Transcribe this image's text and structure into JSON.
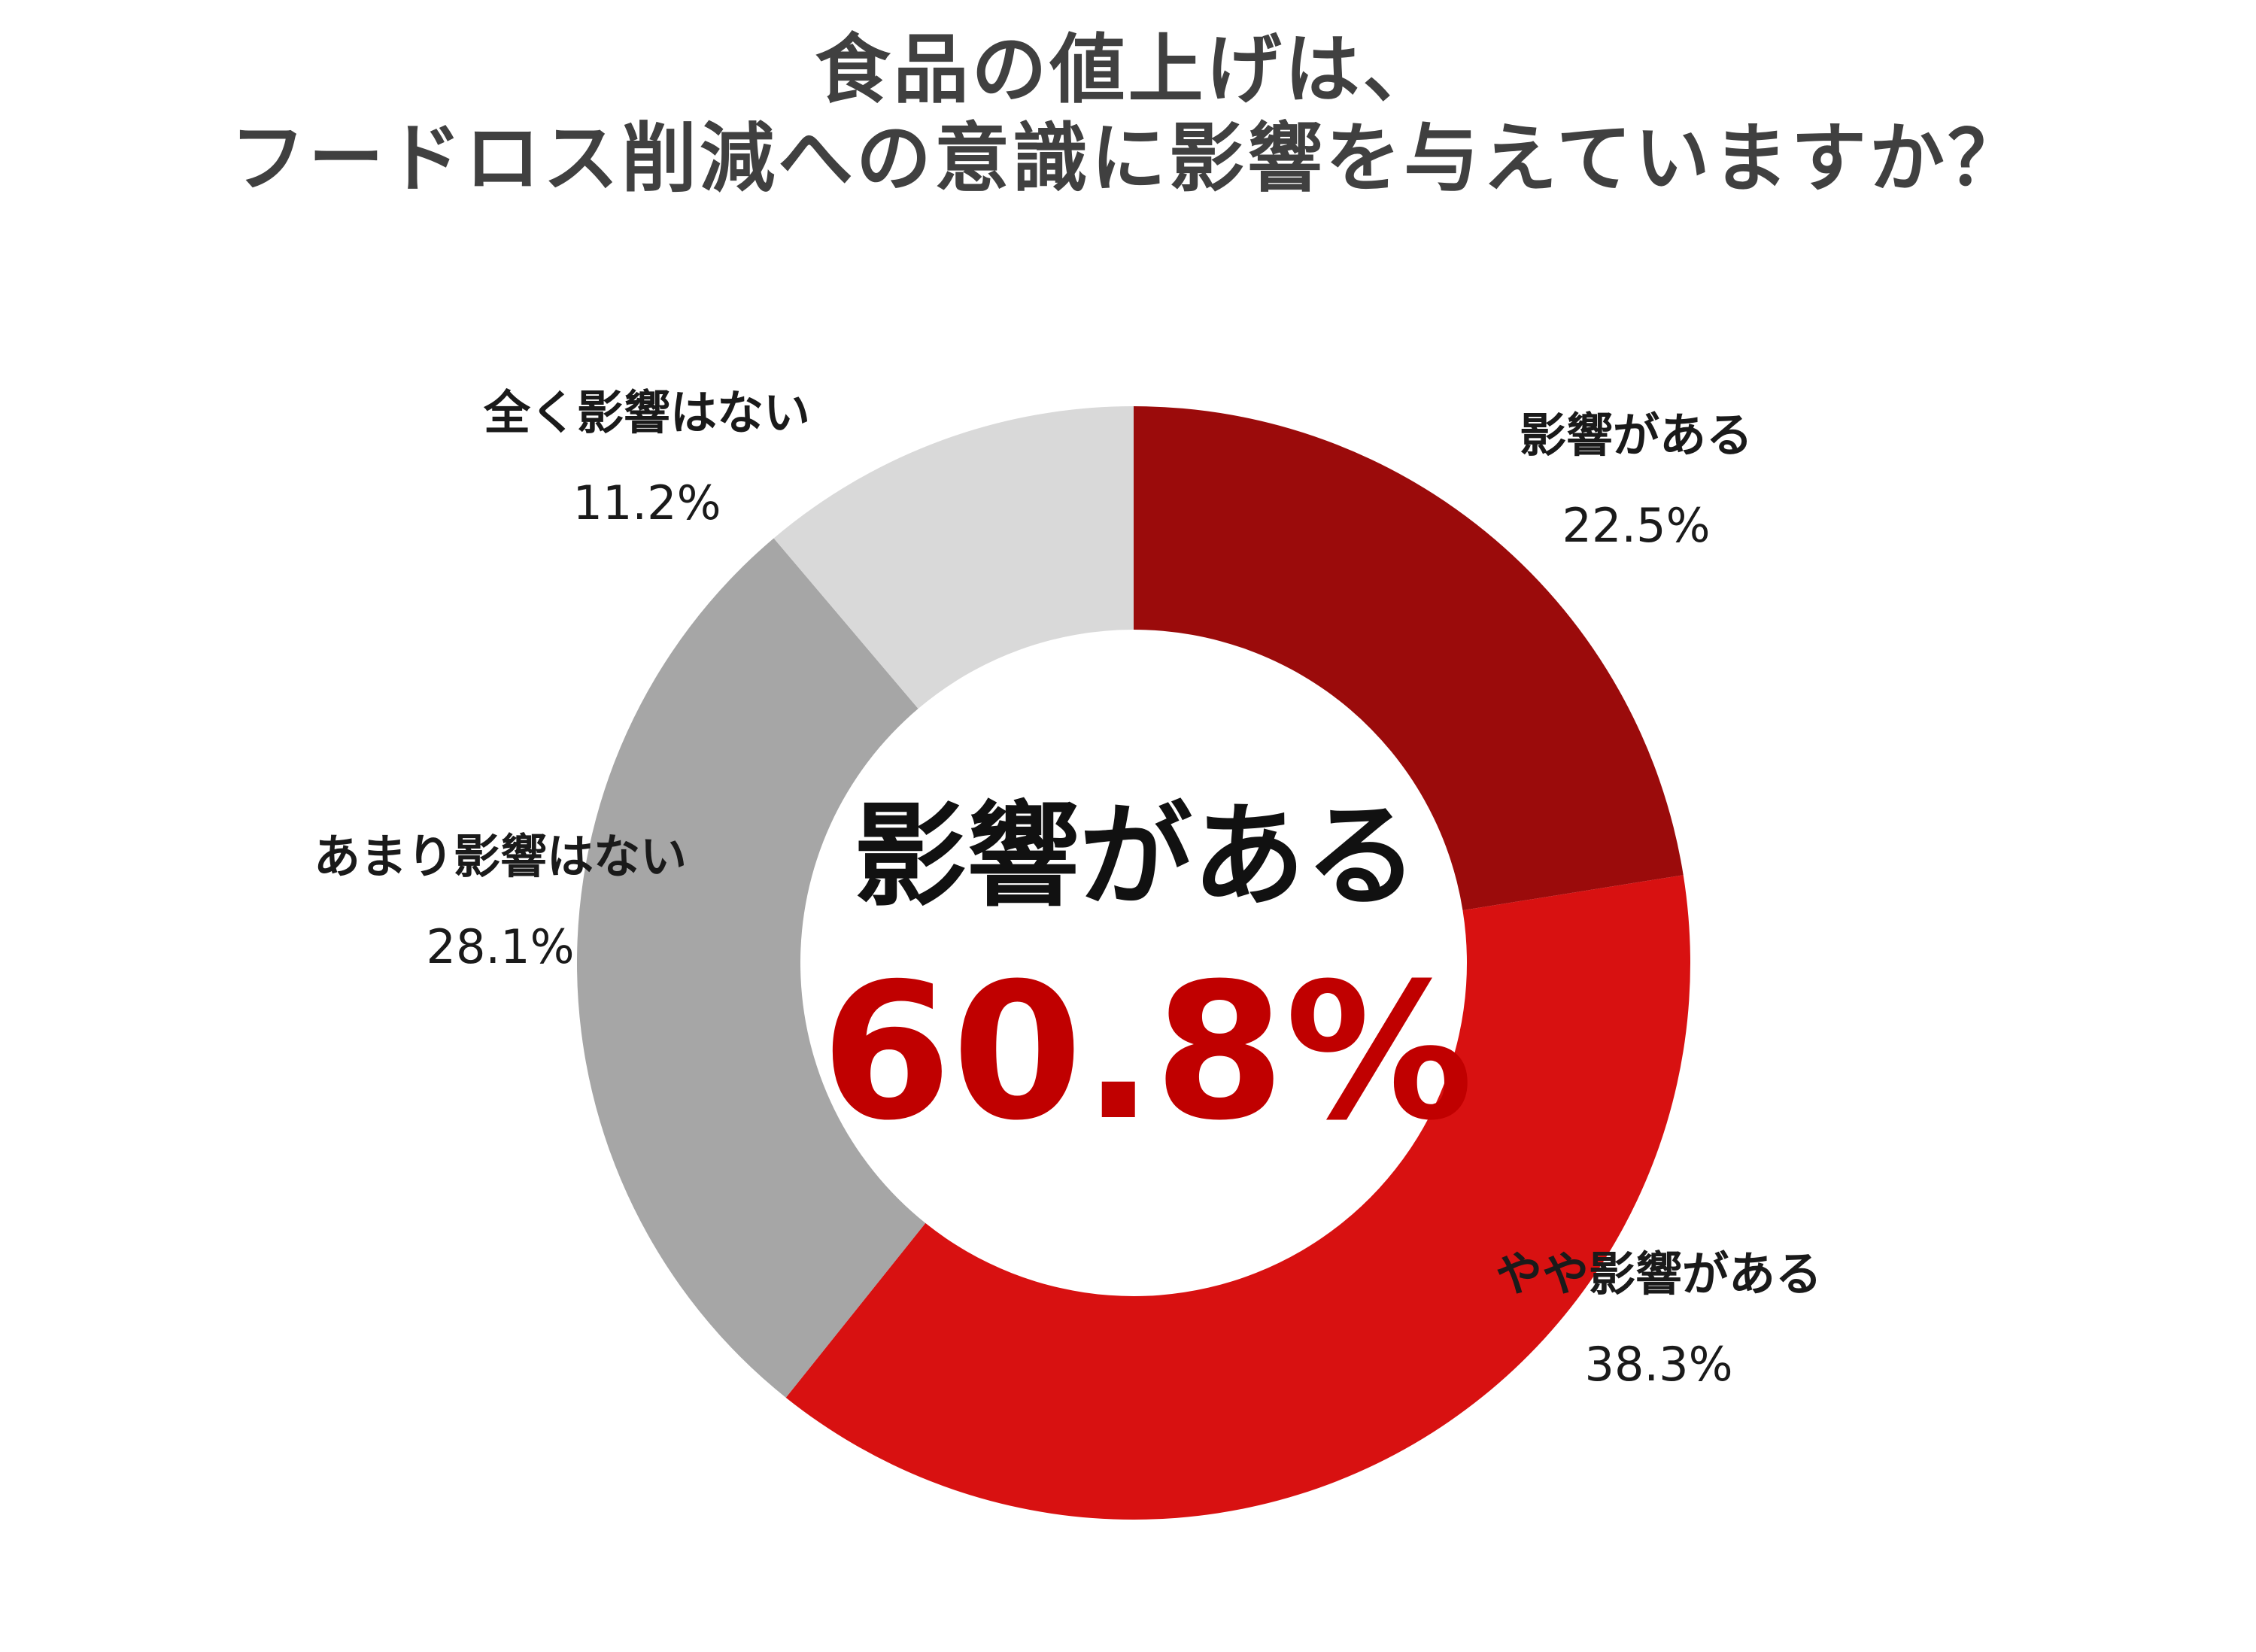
{
  "title_lines": [
    "食品の値上げは、",
    "フードロス削減への意識に影響を与えていますか？"
  ],
  "center": {
    "label": "影響がある",
    "value": "60.8%"
  },
  "chart_data": {
    "type": "pie",
    "donut": true,
    "title": "食品の値上げは、フードロス削減への意識に影響を与えていますか？",
    "categories": [
      "影響がある",
      "やや影響がある",
      "あまり影響はない",
      "全く影響はない"
    ],
    "values": [
      22.5,
      38.3,
      28.1,
      11.2
    ],
    "value_labels": [
      "22.5%",
      "38.3%",
      "28.1%",
      "11.2%"
    ],
    "colors": [
      "#9b0b0b",
      "#d81111",
      "#a6a6a6",
      "#d9d9d9"
    ],
    "start": "12 o'clock, clockwise",
    "legend": "none"
  }
}
